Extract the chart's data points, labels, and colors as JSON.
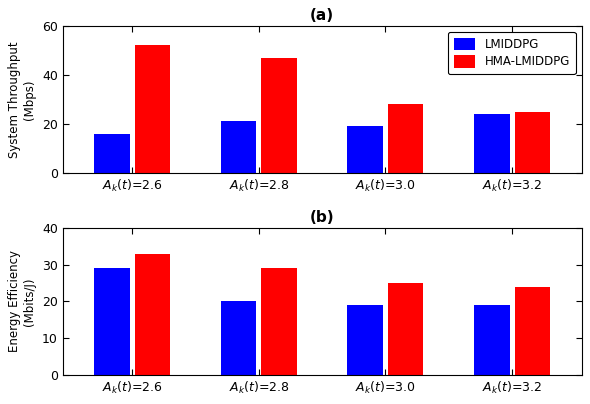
{
  "title_a": "(a)",
  "title_b": "(b)",
  "categories": [
    "$A_k(t)$=2.6",
    "$A_k(t)$=2.8",
    "$A_k(t)$=3.0",
    "$A_k(t)$=3.2"
  ],
  "throughput_lmiddpg": [
    16,
    21,
    19,
    24
  ],
  "throughput_hma": [
    52,
    47,
    28,
    25
  ],
  "energy_lmiddpg": [
    29,
    20,
    19,
    19
  ],
  "energy_hma": [
    33,
    29,
    25,
    24
  ],
  "ylabel_a": "System Throughput\n(Mbps)",
  "ylabel_b": "Energy Efficiency\n(Mbits/J)",
  "ylim_a": [
    0,
    60
  ],
  "ylim_b": [
    0,
    40
  ],
  "yticks_a": [
    0,
    20,
    40,
    60
  ],
  "yticks_b": [
    0,
    10,
    20,
    30,
    40
  ],
  "bar_color_lmiddpg": "#0000FF",
  "bar_color_hma": "#FF0000",
  "legend_labels": [
    "LMIDDPG",
    "HMA-LMIDDPG"
  ],
  "bar_width": 0.28,
  "figure_width": 5.9,
  "figure_height": 4.04,
  "dpi": 100
}
